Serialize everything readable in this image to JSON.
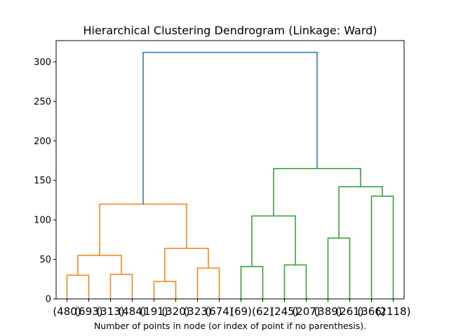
{
  "chart_data": {
    "type": "dendrogram",
    "title": "Hierarchical Clustering Dendrogram (Linkage: Ward)",
    "xlabel": "Number of points in node (or index of point if no parenthesis).",
    "ylabel": "",
    "ylim": [
      0,
      327
    ],
    "yticks": [
      "0",
      "50",
      "100",
      "150",
      "200",
      "250",
      "300"
    ],
    "grid": false,
    "colors": {
      "orange": "#ff7f0e",
      "green": "#2ca02c",
      "blue": "#1f77b4"
    },
    "leaves": [
      "(480)",
      "(693)",
      "(313)",
      "(484)",
      "(191)",
      "(320)",
      "(323)",
      "(674)",
      "(69)",
      "(62)",
      "(245)",
      "(207)",
      "(389)",
      "(261)",
      "(366)",
      "(2118)"
    ],
    "links": [
      {
        "left": [
          5,
          0
        ],
        "right": [
          15,
          0
        ],
        "height": 30,
        "color": "orange"
      },
      {
        "left": [
          25,
          0
        ],
        "right": [
          35,
          0
        ],
        "height": 31,
        "color": "orange"
      },
      {
        "left": [
          10,
          30
        ],
        "right": [
          30,
          31
        ],
        "height": 55,
        "color": "orange"
      },
      {
        "left": [
          45,
          0
        ],
        "right": [
          55,
          0
        ],
        "height": 22,
        "color": "orange"
      },
      {
        "left": [
          65,
          0
        ],
        "right": [
          75,
          0
        ],
        "height": 39,
        "color": "orange"
      },
      {
        "left": [
          50,
          22
        ],
        "right": [
          70,
          39
        ],
        "height": 64,
        "color": "orange"
      },
      {
        "left": [
          20,
          55
        ],
        "right": [
          60,
          64
        ],
        "height": 120,
        "color": "orange"
      },
      {
        "left": [
          85,
          0
        ],
        "right": [
          95,
          0
        ],
        "height": 41,
        "color": "green"
      },
      {
        "left": [
          105,
          0
        ],
        "right": [
          115,
          0
        ],
        "height": 43,
        "color": "green"
      },
      {
        "left": [
          90,
          41
        ],
        "right": [
          110,
          43
        ],
        "height": 105,
        "color": "green"
      },
      {
        "left": [
          125,
          0
        ],
        "right": [
          135,
          0
        ],
        "height": 77,
        "color": "green"
      },
      {
        "left": [
          145,
          0
        ],
        "right": [
          155,
          0
        ],
        "height": 130,
        "color": "green"
      },
      {
        "left": [
          130,
          77
        ],
        "right": [
          150,
          130
        ],
        "height": 142,
        "color": "green"
      },
      {
        "left": [
          100,
          105
        ],
        "right": [
          140,
          142
        ],
        "height": 165,
        "color": "green"
      },
      {
        "left": [
          40,
          120
        ],
        "right": [
          120,
          165
        ],
        "height": 312,
        "color": "blue"
      }
    ]
  }
}
